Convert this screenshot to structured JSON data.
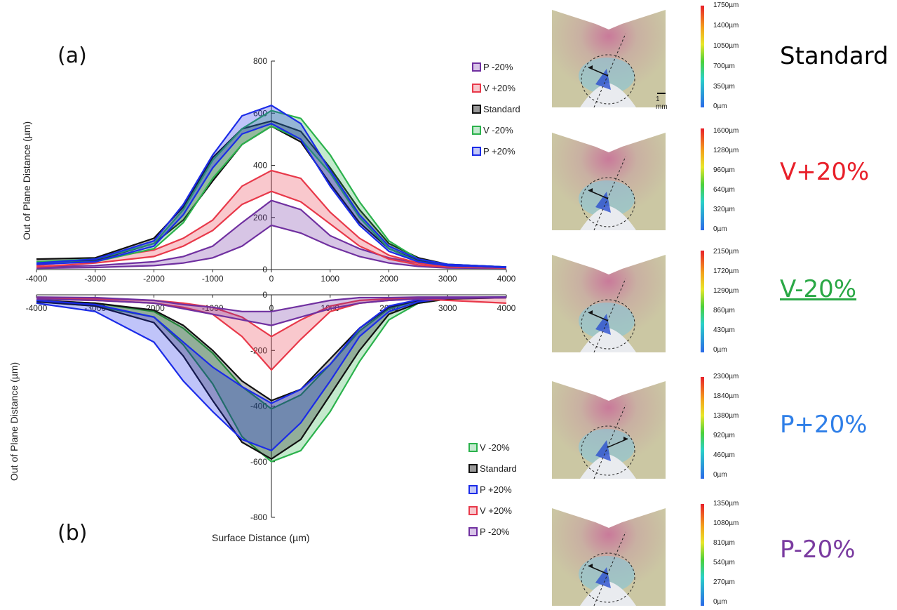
{
  "panel_labels": {
    "a": "(a)",
    "b": "(b)"
  },
  "chart_data": [
    {
      "type": "area",
      "panel": "(a)",
      "ylabel": "Out of Plane Distance (µm)",
      "xlim": [
        -4000,
        4000
      ],
      "ylim": [
        0,
        800
      ],
      "xticks": [
        "-4000",
        "-3000",
        "-2000",
        "-1000",
        "0",
        "1000",
        "2000",
        "3000",
        "4000"
      ],
      "yticks": [
        "800",
        "600",
        "400",
        "200",
        "0"
      ],
      "legend": [
        "P -20%",
        "V +20%",
        "Standard",
        "V -20%",
        "P +20%"
      ],
      "legend_position": "top-right",
      "series": [
        {
          "name": "P -20%",
          "color": "#7030a0",
          "x": [
            -4000,
            -3000,
            -2000,
            -1500,
            -1000,
            -500,
            0,
            500,
            1000,
            1500,
            2000,
            2500,
            3000,
            4000
          ],
          "upper": [
            10,
            15,
            30,
            50,
            90,
            180,
            265,
            230,
            130,
            80,
            45,
            25,
            12,
            8
          ],
          "lower": [
            5,
            8,
            15,
            25,
            45,
            90,
            170,
            140,
            90,
            50,
            25,
            12,
            6,
            5
          ]
        },
        {
          "name": "V +20%",
          "color": "#e8394a",
          "x": [
            -4000,
            -3000,
            -2000,
            -1500,
            -1000,
            -500,
            0,
            500,
            1000,
            1500,
            2000,
            2500,
            3000,
            4000
          ],
          "upper": [
            15,
            40,
            75,
            120,
            190,
            320,
            380,
            350,
            220,
            120,
            55,
            25,
            15,
            10
          ],
          "lower": [
            10,
            25,
            50,
            90,
            150,
            250,
            300,
            260,
            175,
            90,
            40,
            18,
            10,
            6
          ]
        },
        {
          "name": "Standard",
          "color": "#111111",
          "x": [
            -4000,
            -3000,
            -2000,
            -1500,
            -1000,
            -500,
            0,
            500,
            1000,
            1500,
            2000,
            2500,
            3000,
            4000
          ],
          "upper": [
            40,
            45,
            120,
            240,
            430,
            540,
            570,
            530,
            390,
            230,
            100,
            45,
            20,
            10
          ],
          "lower": [
            30,
            35,
            100,
            190,
            340,
            480,
            550,
            490,
            330,
            180,
            80,
            35,
            15,
            8
          ]
        },
        {
          "name": "V -20%",
          "color": "#2bb24c",
          "x": [
            -4000,
            -3000,
            -2000,
            -1500,
            -1000,
            -500,
            0,
            500,
            1000,
            1500,
            2000,
            2500,
            3000,
            4000
          ],
          "upper": [
            30,
            40,
            100,
            230,
            420,
            540,
            610,
            580,
            440,
            260,
            110,
            40,
            20,
            10
          ],
          "lower": [
            25,
            30,
            80,
            180,
            350,
            480,
            550,
            500,
            370,
            200,
            80,
            30,
            15,
            8
          ]
        },
        {
          "name": "P +20%",
          "color": "#1b2be8",
          "x": [
            -4000,
            -3000,
            -2000,
            -1500,
            -1000,
            -500,
            0,
            500,
            1000,
            1500,
            2000,
            2500,
            3000,
            4000
          ],
          "upper": [
            25,
            40,
            110,
            250,
            440,
            590,
            630,
            560,
            380,
            210,
            90,
            40,
            20,
            10
          ],
          "lower": [
            20,
            30,
            90,
            210,
            390,
            520,
            560,
            500,
            320,
            170,
            70,
            30,
            15,
            8
          ]
        }
      ]
    },
    {
      "type": "area",
      "panel": "(b)",
      "xlabel": "Surface Distance (µm)",
      "ylabel": "Out of Plane Distance (µm)",
      "xlim": [
        -4000,
        4000
      ],
      "ylim": [
        -800,
        0
      ],
      "xticks": [
        "-4000",
        "-3000",
        "-2000",
        "-1000",
        "0",
        "1000",
        "2000",
        "3000",
        "4000"
      ],
      "yticks": [
        "0",
        "-200",
        "-400",
        "-600",
        "-800"
      ],
      "legend": [
        "V -20%",
        "Standard",
        "P +20%",
        "V +20%",
        "P -20%"
      ],
      "legend_position": "bottom-right",
      "series": [
        {
          "name": "V -20%",
          "color": "#2bb24c",
          "x": [
            -4000,
            -3000,
            -2000,
            -1500,
            -1000,
            -500,
            0,
            500,
            1000,
            1500,
            2000,
            2500,
            3000,
            4000
          ],
          "upper": [
            -20,
            -30,
            -60,
            -120,
            -210,
            -330,
            -410,
            -360,
            -250,
            -130,
            -50,
            -20,
            -10,
            -10
          ],
          "lower": [
            -25,
            -40,
            -80,
            -180,
            -320,
            -510,
            -600,
            -560,
            -420,
            -240,
            -90,
            -30,
            -15,
            -10
          ]
        },
        {
          "name": "Standard",
          "color": "#111111",
          "x": [
            -4000,
            -3000,
            -2000,
            -1500,
            -1000,
            -500,
            0,
            500,
            1000,
            1500,
            2000,
            2500,
            3000,
            4000
          ],
          "upper": [
            -20,
            -30,
            -55,
            -110,
            -200,
            -310,
            -380,
            -340,
            -230,
            -120,
            -45,
            -20,
            -10,
            -8
          ],
          "lower": [
            -25,
            -40,
            -100,
            -220,
            -380,
            -530,
            -590,
            -520,
            -360,
            -200,
            -70,
            -30,
            -15,
            -10
          ]
        },
        {
          "name": "P +20%",
          "color": "#1b2be8",
          "x": [
            -4000,
            -3000,
            -2000,
            -1500,
            -1000,
            -500,
            0,
            500,
            1000,
            1500,
            2000,
            2500,
            3000,
            4000
          ],
          "upper": [
            -20,
            -35,
            -80,
            -170,
            -260,
            -330,
            -390,
            -340,
            -250,
            -120,
            -40,
            -18,
            -10,
            -8
          ],
          "lower": [
            -30,
            -60,
            -170,
            -310,
            -420,
            -520,
            -560,
            -460,
            -310,
            -150,
            -60,
            -25,
            -12,
            -10
          ]
        },
        {
          "name": "V +20%",
          "color": "#e8394a",
          "x": [
            -4000,
            -3000,
            -2000,
            -1500,
            -1000,
            -500,
            0,
            500,
            1000,
            1500,
            2000,
            2500,
            3000,
            4000
          ],
          "upper": [
            -10,
            -15,
            -20,
            -30,
            -45,
            -80,
            -150,
            -90,
            -40,
            -20,
            -15,
            -10,
            -10,
            -10
          ],
          "lower": [
            -15,
            -20,
            -30,
            -45,
            -70,
            -150,
            -270,
            -160,
            -60,
            -30,
            -20,
            -15,
            -20,
            -30
          ]
        },
        {
          "name": "P -20%",
          "color": "#7030a0",
          "x": [
            -4000,
            -3000,
            -2000,
            -1500,
            -1000,
            -500,
            0,
            500,
            1000,
            1500,
            2000,
            2500,
            3000,
            4000
          ],
          "upper": [
            -8,
            -10,
            -20,
            -35,
            -45,
            -60,
            -60,
            -40,
            -20,
            -10,
            -10,
            -8,
            -8,
            -8
          ],
          "lower": [
            -15,
            -20,
            -30,
            -50,
            -70,
            -90,
            -110,
            -80,
            -50,
            -30,
            -20,
            -15,
            -12,
            -10
          ]
        }
      ]
    }
  ],
  "micrographs": [
    {
      "condition": "Standard",
      "color": "#000000",
      "underline": false,
      "scale_ticks": [
        "1750µm",
        "1400µm",
        "1050µm",
        "700µm",
        "350µm",
        "0µm"
      ],
      "scalebar_label": "1 mm"
    },
    {
      "condition": "V+20%",
      "color": "#e8202a",
      "underline": false,
      "scale_ticks": [
        "1600µm",
        "1280µm",
        "960µm",
        "640µm",
        "320µm",
        "0µm"
      ]
    },
    {
      "condition": "V-20%",
      "color": "#2aa845",
      "underline": true,
      "scale_ticks": [
        "2150µm",
        "1720µm",
        "1290µm",
        "860µm",
        "430µm",
        "0µm"
      ]
    },
    {
      "condition": "P+20%",
      "color": "#2f7fe8",
      "underline": false,
      "scale_ticks": [
        "2300µm",
        "1840µm",
        "1380µm",
        "920µm",
        "460µm",
        "0µm"
      ]
    },
    {
      "condition": "P-20%",
      "color": "#7a3ba0",
      "underline": false,
      "scale_ticks": [
        "1350µm",
        "1080µm",
        "810µm",
        "540µm",
        "270µm",
        "0µm"
      ]
    }
  ]
}
